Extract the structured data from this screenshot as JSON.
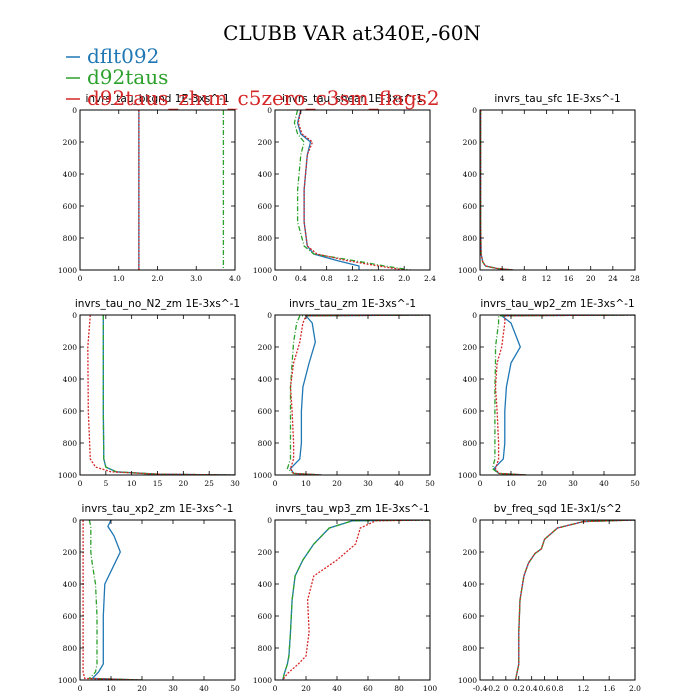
{
  "figure_title": "CLUBB VAR at340E,-60N",
  "legend": [
    {
      "name": "dflt092",
      "color": "#1f77b4"
    },
    {
      "name": "d92taus",
      "color": "#2ca02c"
    },
    {
      "name": "d92taus_zhun_c5zero_c3sm_flags2",
      "color": "#d62728"
    }
  ],
  "chart_data": [
    {
      "type": "line",
      "title": "invrs_tau_bkgnd  1E-3xs^-1",
      "xlim": [
        0,
        4
      ],
      "ylim": [
        1000,
        0
      ],
      "xticks": [
        "0",
        "1.0",
        "2.0",
        "3.0",
        "4.0"
      ],
      "xtick_values": [
        0,
        1,
        2,
        3,
        4
      ],
      "yticks": [
        "0",
        "200",
        "400",
        "600",
        "800",
        "1000"
      ],
      "series": [
        {
          "name": "dflt092",
          "x": [
            1.52,
            1.52
          ],
          "y": [
            0,
            1000
          ]
        },
        {
          "name": "d92taus",
          "x": [
            3.7,
            3.7
          ],
          "y": [
            0,
            1000
          ]
        },
        {
          "name": "d92taus_zhun_c5zero_c3sm_flags2",
          "x": [
            1.52,
            1.52
          ],
          "y": [
            0,
            1000
          ]
        }
      ]
    },
    {
      "type": "line",
      "title": "invrs_tau_shear  1E-3xs^-1",
      "xlim": [
        0,
        2.4
      ],
      "ylim": [
        1000,
        0
      ],
      "xticks": [
        "0",
        "0.4",
        "0.8",
        "1.2",
        "1.6",
        "2.0",
        "2.4"
      ],
      "xtick_values": [
        0,
        0.4,
        0.8,
        1.2,
        1.6,
        2.0,
        2.4
      ],
      "yticks": [
        "0",
        "200",
        "400",
        "600",
        "800",
        "1000"
      ],
      "series": [
        {
          "name": "dflt092",
          "x": [
            0.4,
            0.35,
            0.4,
            0.55,
            0.5,
            0.45,
            0.45,
            0.5,
            0.6,
            0.95,
            1.3,
            1.3
          ],
          "y": [
            0,
            80,
            150,
            200,
            280,
            500,
            700,
            850,
            900,
            940,
            975,
            1000
          ]
        },
        {
          "name": "d92taus",
          "x": [
            0.35,
            0.3,
            0.35,
            0.45,
            0.4,
            0.35,
            0.35,
            0.45,
            0.6,
            1.2,
            1.7,
            2.1
          ],
          "y": [
            0,
            80,
            150,
            200,
            280,
            500,
            700,
            850,
            900,
            940,
            975,
            1000
          ]
        },
        {
          "name": "d92taus_zhun_c5zero_c3sm_flags2",
          "x": [
            0.4,
            0.36,
            0.42,
            0.58,
            0.5,
            0.45,
            0.45,
            0.5,
            0.65,
            1.1,
            1.6,
            2.0
          ],
          "y": [
            0,
            80,
            150,
            200,
            280,
            500,
            700,
            850,
            900,
            940,
            975,
            1000
          ]
        }
      ]
    },
    {
      "type": "line",
      "title": "invrs_tau_sfc  1E-3xs^-1",
      "xlim": [
        0,
        28
      ],
      "ylim": [
        1000,
        0
      ],
      "xticks": [
        "0",
        "4",
        "8",
        "12",
        "16",
        "20",
        "24",
        "28"
      ],
      "xtick_values": [
        0,
        4,
        8,
        12,
        16,
        20,
        24,
        28
      ],
      "yticks": [
        "0",
        "200",
        "400",
        "600",
        "800",
        "1000"
      ],
      "series": [
        {
          "name": "dflt092",
          "x": [
            0.1,
            0.1,
            0.2,
            0.5,
            1.0,
            3.0,
            6.0
          ],
          "y": [
            0,
            700,
            900,
            950,
            975,
            990,
            1000
          ]
        },
        {
          "name": "d92taus",
          "x": [
            0.1,
            0.1,
            0.2,
            0.5,
            1.0,
            3.0,
            6.0
          ],
          "y": [
            0,
            700,
            900,
            950,
            975,
            990,
            1000
          ]
        },
        {
          "name": "d92taus_zhun_c5zero_c3sm_flags2",
          "x": [
            0.1,
            0.1,
            0.2,
            0.5,
            1.0,
            3.0,
            6.0
          ],
          "y": [
            0,
            700,
            900,
            950,
            975,
            990,
            1000
          ]
        }
      ]
    },
    {
      "type": "line",
      "title": "invrs_tau_no_N2_zm  1E-3xs^-1",
      "xlim": [
        0,
        30
      ],
      "ylim": [
        1000,
        0
      ],
      "xticks": [
        "0",
        "5",
        "10",
        "15",
        "20",
        "25",
        "30"
      ],
      "xtick_values": [
        0,
        5,
        10,
        15,
        20,
        25,
        30
      ],
      "yticks": [
        "0",
        "200",
        "400",
        "600",
        "800",
        "1000"
      ],
      "series": [
        {
          "name": "dflt092",
          "x": [
            4.5,
            4.5,
            4.5,
            4.6,
            5.0,
            7.0,
            15.0,
            30.0
          ],
          "y": [
            0,
            200,
            600,
            900,
            950,
            980,
            995,
            1000
          ]
        },
        {
          "name": "d92taus",
          "x": [
            4.5,
            4.5,
            4.5,
            4.6,
            5.0,
            7.0,
            15.0,
            30.0
          ],
          "y": [
            0,
            200,
            600,
            900,
            950,
            980,
            995,
            1000
          ]
        },
        {
          "name": "d92taus_zhun_c5zero_c3sm_flags2",
          "x": [
            2.0,
            1.5,
            1.6,
            2.0,
            3.0,
            6.0,
            15.0,
            30.0
          ],
          "y": [
            0,
            200,
            600,
            900,
            950,
            980,
            995,
            1000
          ]
        }
      ]
    },
    {
      "type": "line",
      "title": "invrs_tau_zm  1E-3xs^-1",
      "xlim": [
        0,
        50
      ],
      "ylim": [
        1000,
        0
      ],
      "xticks": [
        "0",
        "10",
        "20",
        "30",
        "40",
        "50"
      ],
      "xtick_values": [
        0,
        10,
        20,
        30,
        40,
        50
      ],
      "yticks": [
        "0",
        "200",
        "400",
        "600",
        "800",
        "1000"
      ],
      "series": [
        {
          "name": "dflt092",
          "x": [
            50,
            10,
            12,
            13,
            11,
            9,
            8.5,
            8.5,
            8.0,
            5.0,
            6.0,
            15.0
          ],
          "y": [
            0,
            5,
            50,
            170,
            300,
            450,
            600,
            800,
            900,
            960,
            990,
            1000
          ]
        },
        {
          "name": "d92taus",
          "x": [
            50,
            8,
            7,
            6,
            5.5,
            5,
            5,
            5,
            5,
            4,
            6,
            15
          ],
          "y": [
            0,
            5,
            50,
            170,
            300,
            450,
            600,
            800,
            900,
            960,
            990,
            1000
          ]
        },
        {
          "name": "d92taus_zhun_c5zero_c3sm_flags2",
          "x": [
            50,
            10,
            9,
            8,
            6,
            5,
            5.5,
            6,
            6,
            5,
            6,
            15
          ],
          "y": [
            0,
            5,
            50,
            170,
            300,
            450,
            600,
            800,
            900,
            960,
            990,
            1000
          ]
        }
      ]
    },
    {
      "type": "line",
      "title": "invrs_tau_wp2_zm  1E-3xs^-1",
      "xlim": [
        0,
        50
      ],
      "ylim": [
        1000,
        0
      ],
      "xticks": [
        "0",
        "10",
        "20",
        "30",
        "40",
        "50"
      ],
      "xtick_values": [
        0,
        10,
        20,
        30,
        40,
        50
      ],
      "yticks": [
        "0",
        "200",
        "400",
        "600",
        "800",
        "1000"
      ],
      "series": [
        {
          "name": "dflt092",
          "x": [
            50,
            7,
            10,
            13,
            10,
            8.5,
            8,
            8,
            7.5,
            4.5,
            6,
            15
          ],
          "y": [
            0,
            5,
            50,
            200,
            300,
            450,
            600,
            800,
            900,
            960,
            990,
            1000
          ]
        },
        {
          "name": "d92taus",
          "x": [
            50,
            6,
            6,
            5,
            5,
            4.8,
            4.8,
            4.8,
            4.8,
            4,
            6,
            15
          ],
          "y": [
            0,
            5,
            50,
            200,
            300,
            450,
            600,
            800,
            900,
            960,
            990,
            1000
          ]
        },
        {
          "name": "d92taus_zhun_c5zero_c3sm_flags2",
          "x": [
            50,
            8,
            8,
            7,
            5.5,
            5,
            5.5,
            6,
            6,
            5,
            6,
            15
          ],
          "y": [
            0,
            5,
            50,
            200,
            300,
            450,
            600,
            800,
            900,
            960,
            990,
            1000
          ]
        }
      ]
    },
    {
      "type": "line",
      "title": "invrs_tau_xp2_zm  1E-3xs^-1",
      "xlim": [
        0,
        50
      ],
      "ylim": [
        1000,
        0
      ],
      "xticks": [
        "0",
        "10",
        "20",
        "30",
        "40",
        "50"
      ],
      "xtick_values": [
        0,
        10,
        20,
        30,
        40,
        50
      ],
      "yticks": [
        "0",
        "200",
        "400",
        "600",
        "800",
        "1000"
      ],
      "series": [
        {
          "name": "dflt092",
          "x": [
            10,
            9,
            11,
            13,
            11,
            8,
            7.5,
            7.5,
            7.5,
            6,
            4,
            20
          ],
          "y": [
            0,
            40,
            100,
            200,
            280,
            400,
            600,
            800,
            900,
            950,
            990,
            1000
          ]
        },
        {
          "name": "d92taus",
          "x": [
            3,
            3.5,
            3.5,
            3.5,
            4,
            5,
            5.5,
            5.5,
            5.5,
            5,
            3,
            20
          ],
          "y": [
            0,
            40,
            100,
            200,
            280,
            400,
            600,
            800,
            900,
            950,
            990,
            1000
          ]
        },
        {
          "name": "d92taus_zhun_c5zero_c3sm_flags2",
          "x": [
            1,
            1,
            1,
            1,
            1,
            1,
            1,
            1,
            1,
            1,
            1.5,
            20
          ],
          "y": [
            0,
            40,
            100,
            200,
            280,
            400,
            600,
            800,
            900,
            950,
            990,
            1000
          ]
        }
      ]
    },
    {
      "type": "line",
      "title": "invrs_tau_wp3_zm  1E-3xs^-1",
      "xlim": [
        0,
        100
      ],
      "ylim": [
        1000,
        0
      ],
      "xticks": [
        "0",
        "20",
        "40",
        "60",
        "80",
        "100"
      ],
      "xtick_values": [
        0,
        20,
        40,
        60,
        80,
        100
      ],
      "yticks": [
        "0",
        "200",
        "400",
        "600",
        "800",
        "1000"
      ],
      "series": [
        {
          "name": "dflt092",
          "x": [
            100,
            50,
            35,
            25,
            18,
            13,
            11,
            10,
            9,
            8,
            6,
            5
          ],
          "y": [
            0,
            5,
            50,
            150,
            250,
            350,
            500,
            700,
            850,
            900,
            960,
            1000
          ]
        },
        {
          "name": "d92taus",
          "x": [
            100,
            50,
            35,
            25,
            18,
            13,
            11,
            10,
            9,
            8,
            6,
            5
          ],
          "y": [
            0,
            5,
            50,
            150,
            250,
            350,
            500,
            700,
            850,
            900,
            960,
            1000
          ]
        },
        {
          "name": "d92taus_zhun_c5zero_c3sm_flags2",
          "x": [
            100,
            65,
            55,
            52,
            40,
            25,
            21,
            22,
            20,
            15,
            8,
            5
          ],
          "y": [
            0,
            5,
            50,
            150,
            250,
            350,
            500,
            700,
            850,
            900,
            960,
            1000
          ]
        }
      ]
    },
    {
      "type": "line",
      "title": "bv_freq_sqd  1E-3x1/s^2",
      "xlim": [
        -0.4,
        2.0
      ],
      "ylim": [
        1000,
        0
      ],
      "xticks": [
        "-0.4",
        "-0.2",
        "0",
        "0.2",
        "0.4",
        "0.6",
        "0.8",
        "1.2",
        "1.6",
        "2.0"
      ],
      "xtick_values": [
        -0.4,
        -0.2,
        0,
        0.2,
        0.4,
        0.6,
        0.8,
        1.2,
        1.6,
        2.0
      ],
      "yticks": [
        "0",
        "200",
        "400",
        "600",
        "800",
        "1000"
      ],
      "series": [
        {
          "name": "dflt092",
          "x": [
            2.0,
            1.2,
            0.8,
            0.6,
            0.55,
            0.45,
            0.35,
            0.28,
            0.22,
            0.2,
            0.2,
            0.15
          ],
          "y": [
            0,
            10,
            50,
            120,
            180,
            210,
            270,
            350,
            500,
            700,
            900,
            1000
          ]
        },
        {
          "name": "d92taus",
          "x": [
            2.0,
            1.2,
            0.8,
            0.6,
            0.55,
            0.45,
            0.35,
            0.28,
            0.22,
            0.2,
            0.2,
            0.15
          ],
          "y": [
            0,
            10,
            50,
            120,
            180,
            210,
            270,
            350,
            500,
            700,
            900,
            1000
          ]
        },
        {
          "name": "d92taus_zhun_c5zero_c3sm_flags2",
          "x": [
            2.0,
            1.2,
            0.8,
            0.6,
            0.55,
            0.45,
            0.35,
            0.28,
            0.22,
            0.2,
            0.2,
            0.15
          ],
          "y": [
            0,
            10,
            50,
            120,
            180,
            210,
            270,
            350,
            500,
            700,
            900,
            1000
          ]
        }
      ]
    }
  ]
}
